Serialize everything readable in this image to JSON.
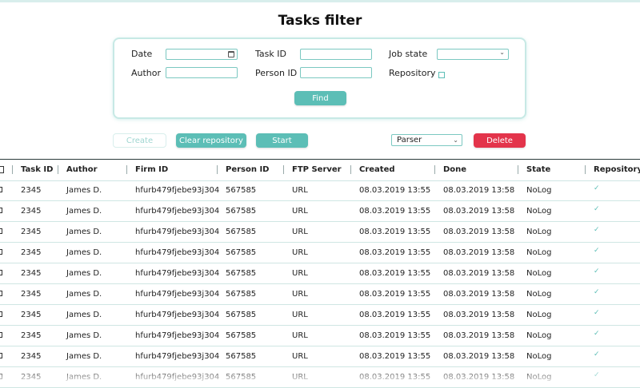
{
  "title": "Tasks filter",
  "filter": {
    "date_label": "Date",
    "task_id_label": "Task ID",
    "job_state_label": "Job state",
    "author_label": "Author",
    "person_id_label": "Person ID",
    "repository_label": "Repository",
    "date_value": "",
    "task_id_value": "",
    "job_state_value": "",
    "author_value": "",
    "person_id_value": "",
    "find_label": "Find"
  },
  "actions": {
    "create_label": "Create",
    "clear_repo_label": "Clear repository",
    "start_label": "Start",
    "parser_value": "Parser",
    "delete_label": "Delete"
  },
  "table": {
    "columns": [
      "Task ID",
      "Author",
      "Firm ID",
      "Person ID",
      "FTP Server",
      "Created",
      "Done",
      "State",
      "Repository"
    ],
    "rows": [
      {
        "task_id": "2345",
        "author": "James D.",
        "firm_id": "hfurb479fjebe93j304",
        "person_id": "567585",
        "ftp": "URL",
        "created": "08.03.2019 13:55",
        "done": "08.03.2019 13:58",
        "state": "NoLog",
        "repository": "✓"
      },
      {
        "task_id": "2345",
        "author": "James D.",
        "firm_id": "hfurb479fjebe93j304",
        "person_id": "567585",
        "ftp": "URL",
        "created": "08.03.2019 13:55",
        "done": "08.03.2019 13:58",
        "state": "NoLog",
        "repository": "✓"
      },
      {
        "task_id": "2345",
        "author": "James D.",
        "firm_id": "hfurb479fjebe93j304",
        "person_id": "567585",
        "ftp": "URL",
        "created": "08.03.2019 13:55",
        "done": "08.03.2019 13:58",
        "state": "NoLog",
        "repository": "✓"
      },
      {
        "task_id": "2345",
        "author": "James D.",
        "firm_id": "hfurb479fjebe93j304",
        "person_id": "567585",
        "ftp": "URL",
        "created": "08.03.2019 13:55",
        "done": "08.03.2019 13:58",
        "state": "NoLog",
        "repository": "✓"
      },
      {
        "task_id": "2345",
        "author": "James D.",
        "firm_id": "hfurb479fjebe93j304",
        "person_id": "567585",
        "ftp": "URL",
        "created": "08.03.2019 13:55",
        "done": "08.03.2019 13:58",
        "state": "NoLog",
        "repository": "✓"
      },
      {
        "task_id": "2345",
        "author": "James D.",
        "firm_id": "hfurb479fjebe93j304",
        "person_id": "567585",
        "ftp": "URL",
        "created": "08.03.2019 13:55",
        "done": "08.03.2019 13:58",
        "state": "NoLog",
        "repository": "✓"
      },
      {
        "task_id": "2345",
        "author": "James D.",
        "firm_id": "hfurb479fjebe93j304",
        "person_id": "567585",
        "ftp": "URL",
        "created": "08.03.2019 13:55",
        "done": "08.03.2019 13:58",
        "state": "NoLog",
        "repository": "✓"
      },
      {
        "task_id": "2345",
        "author": "James D.",
        "firm_id": "hfurb479fjebe93j304",
        "person_id": "567585",
        "ftp": "URL",
        "created": "08.03.2019 13:55",
        "done": "08.03.2019 13:58",
        "state": "NoLog",
        "repository": "✓"
      },
      {
        "task_id": "2345",
        "author": "James D.",
        "firm_id": "hfurb479fjebe93j304",
        "person_id": "567585",
        "ftp": "URL",
        "created": "08.03.2019 13:55",
        "done": "08.03.2019 13:58",
        "state": "NoLog",
        "repository": "✓"
      },
      {
        "task_id": "2345",
        "author": "James D.",
        "firm_id": "hfurb479fjebe93j304",
        "person_id": "567585",
        "ftp": "URL",
        "created": "08.03.2019 13:55",
        "done": "08.03.2019 13:58",
        "state": "NoLog",
        "repository": "✓"
      }
    ]
  },
  "colors": {
    "accent": "#5cbeb6",
    "danger": "#e3344b",
    "panel_border": "#c7e9e5"
  }
}
